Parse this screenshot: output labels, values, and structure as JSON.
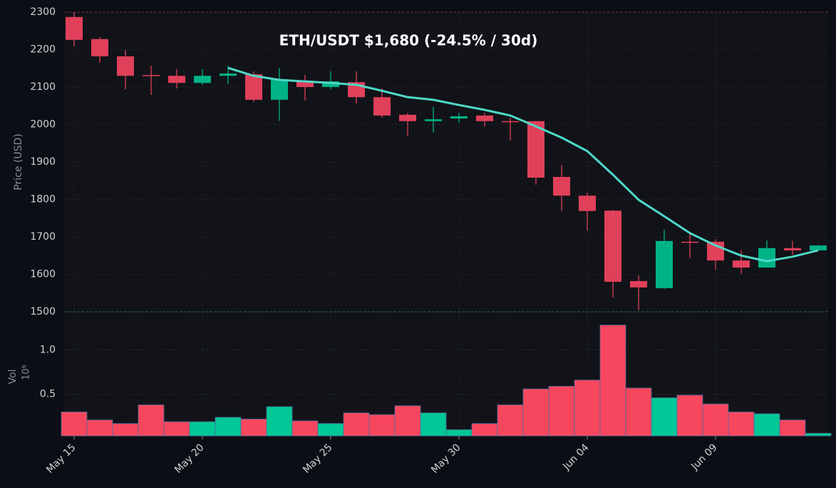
{
  "chart_data": {
    "type": "candlestick",
    "title": "ETH/USDT   $1,680   (-24.5% / 30d)",
    "ylabel": "Price (USD)",
    "volume_label": "Vol",
    "volume_scale_label": "10⁶",
    "categories": [
      "May 15",
      null,
      null,
      null,
      null,
      "May 20",
      null,
      null,
      null,
      null,
      "May 25",
      null,
      null,
      null,
      null,
      "May 30",
      null,
      null,
      null,
      null,
      "Jun 04",
      null,
      null,
      null,
      null,
      "Jun 09",
      null,
      null,
      null,
      null
    ],
    "open": [
      2287,
      2228,
      2182,
      2132,
      2130,
      2111,
      2130,
      2134,
      2066,
      2117,
      2100,
      2113,
      2073,
      2026,
      2009,
      2016,
      2024,
      2009,
      2009,
      1860,
      1810,
      1770,
      1582,
      1563,
      1687,
      1687,
      1637,
      1618,
      1670,
      1664
    ],
    "high": [
      2300,
      2233,
      2199,
      2157,
      2148,
      2148,
      2157,
      2142,
      2151,
      2132,
      2142,
      2142,
      2096,
      2031,
      2047,
      2031,
      2031,
      2018,
      2009,
      1892,
      1818,
      1772,
      1597,
      1719,
      1711,
      1694,
      1664,
      1690,
      1689,
      1679
    ],
    "low": [
      2209,
      2165,
      2094,
      2079,
      2096,
      2106,
      2108,
      2060,
      2010,
      2064,
      2094,
      2056,
      2018,
      1969,
      1978,
      2005,
      1995,
      1957,
      1839,
      1769,
      1717,
      1538,
      1504,
      1561,
      1643,
      1612,
      1601,
      1618,
      1652,
      1664
    ],
    "close": [
      2226,
      2182,
      2130,
      2130,
      2111,
      2130,
      2136,
      2066,
      2121,
      2100,
      2115,
      2073,
      2024,
      2009,
      2014,
      2022,
      2009,
      2008,
      1858,
      1810,
      1769,
      1580,
      1565,
      1689,
      1685,
      1637,
      1618,
      1670,
      1664,
      1677
    ],
    "ma": {
      "color": "#4fd8c8",
      "values": [
        null,
        null,
        null,
        null,
        null,
        null,
        2151,
        2130,
        2119,
        2115,
        2111,
        2106,
        2090,
        2073,
        2066,
        2052,
        2039,
        2024,
        1995,
        1965,
        1929,
        1866,
        1799,
        1755,
        1710,
        1677,
        1650,
        1635,
        1647,
        1664
      ]
    },
    "volume": [
      0.3,
      0.21,
      0.17,
      0.38,
      0.19,
      0.19,
      0.24,
      0.22,
      0.36,
      0.2,
      0.17,
      0.29,
      0.27,
      0.37,
      0.29,
      0.1,
      0.17,
      0.38,
      0.56,
      0.59,
      0.66,
      1.28,
      0.57,
      0.46,
      0.49,
      0.39,
      0.3,
      0.28,
      0.21,
      0.06
    ],
    "up_color": "#00b386",
    "down_color": "#e0405a",
    "volume_up_color": "#00c896",
    "volume_down_color": "#f7475f",
    "ylim": [
      1500,
      2300
    ],
    "yticks": [
      1500,
      1600,
      1700,
      1800,
      1900,
      2000,
      2100,
      2200,
      2300
    ],
    "volume_ylim": [
      0.03,
      1.43
    ],
    "volume_yticks": [
      0.5,
      {
        "value": 1,
        "label": "1.0"
      }
    ],
    "grid": true
  }
}
